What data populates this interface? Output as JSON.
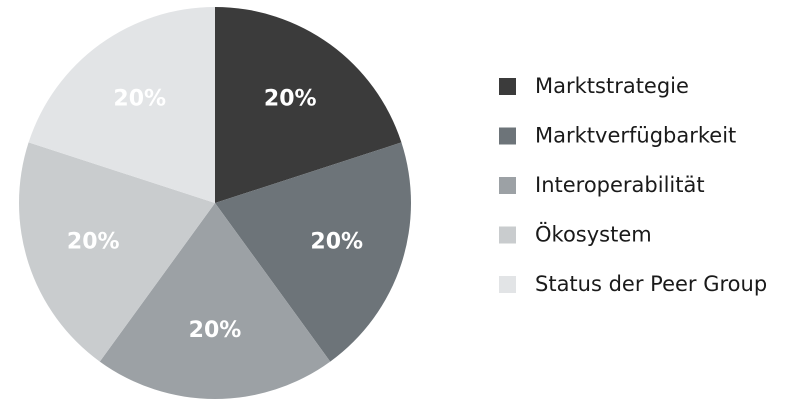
{
  "chart_data": {
    "type": "pie",
    "categories": [
      "Marktstrategie",
      "Marktverfügbarkeit",
      "Interoperabilität",
      "Ökosystem",
      "Status der Peer Group"
    ],
    "values": [
      20,
      20,
      20,
      20,
      20
    ],
    "value_labels": [
      "20%",
      "20%",
      "20%",
      "20%",
      "20%"
    ],
    "colors": [
      "#3b3b3b",
      "#6d7479",
      "#9ca1a5",
      "#c9ccce",
      "#e2e4e6"
    ],
    "legend": "right"
  }
}
